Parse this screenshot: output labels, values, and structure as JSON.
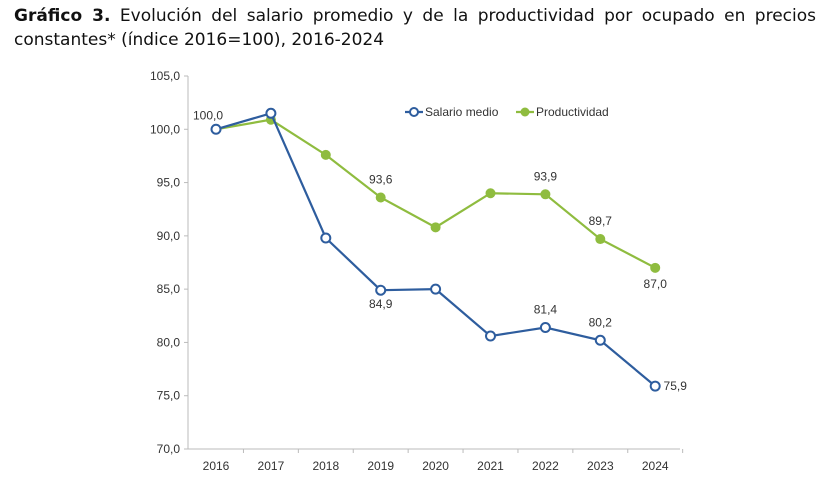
{
  "title": {
    "bold": "Gráfico 3.",
    "text": " Evolución del salario promedio y de la productividad por ocupado en precios constantes* (índice 2016=100), 2016-2024"
  },
  "chart_data": {
    "type": "line",
    "title": "",
    "xlabel": "",
    "ylabel": "",
    "categories": [
      "2016",
      "2017",
      "2018",
      "2019",
      "2020",
      "2021",
      "2022",
      "2023",
      "2024"
    ],
    "ylim": [
      70,
      105
    ],
    "yticks": [
      70,
      75,
      80,
      85,
      90,
      95,
      100,
      105
    ],
    "ytick_labels": [
      "70,0",
      "75,0",
      "80,0",
      "85,0",
      "90,0",
      "95,0",
      "100,0",
      "105,0"
    ],
    "grid": false,
    "legend_position": "top-right",
    "series": [
      {
        "name": "Salario medio",
        "color": "#2e5d9e",
        "marker": "hollow-circle",
        "values": [
          100.0,
          101.5,
          89.8,
          84.9,
          85.0,
          80.6,
          81.4,
          80.2,
          75.9
        ],
        "data_labels": [
          "100,0",
          null,
          null,
          "84,9",
          null,
          null,
          "81,4",
          "80,2",
          "75,9"
        ]
      },
      {
        "name": "Productividad",
        "color": "#8fbc3f",
        "marker": "filled-circle",
        "values": [
          100.0,
          100.9,
          97.6,
          93.6,
          90.8,
          94.0,
          93.9,
          89.7,
          87.0
        ],
        "data_labels": [
          null,
          null,
          null,
          "93,6",
          null,
          null,
          "93,9",
          "89,7",
          "87,0"
        ]
      }
    ]
  }
}
